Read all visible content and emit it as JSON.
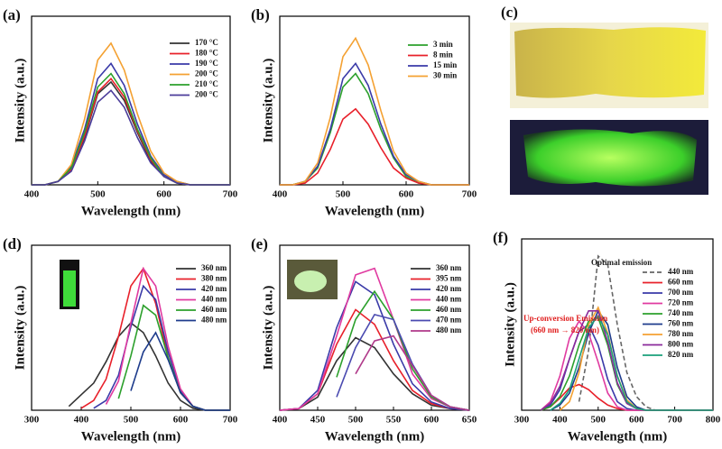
{
  "photo_panel": {
    "label": "(c)"
  },
  "chart_data": [
    {
      "type": "line",
      "label": "(a)",
      "xlabel": "Wavelength (nm)",
      "ylabel": "Intensity (a.u.)",
      "x": [
        400,
        420,
        440,
        460,
        480,
        500,
        520,
        540,
        560,
        580,
        600,
        620,
        640,
        660,
        680,
        700
      ],
      "xlim": [
        400,
        700
      ],
      "xticks": [
        400,
        500,
        600,
        700
      ],
      "ylim": [
        0,
        1
      ],
      "legend": "upper right",
      "series": [
        {
          "name": "170 °C",
          "color": "#333333",
          "values": [
            0,
            0,
            0.02,
            0.09,
            0.28,
            0.54,
            0.61,
            0.5,
            0.31,
            0.14,
            0.05,
            0.01,
            0,
            0,
            0,
            0
          ]
        },
        {
          "name": "180 °C",
          "color": "#e8202a",
          "values": [
            0,
            0,
            0.02,
            0.09,
            0.29,
            0.55,
            0.63,
            0.52,
            0.32,
            0.15,
            0.05,
            0.01,
            0,
            0,
            0,
            0
          ]
        },
        {
          "name": "190 °C",
          "color": "#3a3aa8",
          "values": [
            0,
            0,
            0.02,
            0.11,
            0.33,
            0.63,
            0.72,
            0.59,
            0.36,
            0.17,
            0.06,
            0.02,
            0,
            0,
            0,
            0
          ]
        },
        {
          "name": "200 °C",
          "color": "#f4a132",
          "values": [
            0,
            0,
            0.02,
            0.12,
            0.39,
            0.74,
            0.84,
            0.68,
            0.42,
            0.2,
            0.07,
            0.02,
            0,
            0,
            0,
            0
          ]
        },
        {
          "name": "210 °C",
          "color": "#2ca02c",
          "values": [
            0,
            0,
            0.02,
            0.1,
            0.31,
            0.58,
            0.66,
            0.54,
            0.33,
            0.16,
            0.05,
            0.01,
            0,
            0,
            0,
            0
          ]
        },
        {
          "name": "200 °C",
          "color": "#4b3c9a",
          "values": [
            0,
            0,
            0.02,
            0.08,
            0.26,
            0.49,
            0.56,
            0.46,
            0.28,
            0.13,
            0.05,
            0.01,
            0,
            0,
            0,
            0
          ]
        }
      ]
    },
    {
      "type": "line",
      "label": "(b)",
      "xlabel": "Wavelength (nm)",
      "ylabel": "Intensity (a.u.)",
      "x": [
        400,
        420,
        440,
        460,
        480,
        500,
        520,
        540,
        560,
        580,
        600,
        620,
        640,
        660,
        680,
        700
      ],
      "xlim": [
        400,
        700
      ],
      "xticks": [
        400,
        500,
        600,
        700
      ],
      "ylim": [
        0,
        1
      ],
      "legend": "upper right",
      "series": [
        {
          "name": "3 min",
          "color": "#2ca02c",
          "values": [
            0,
            0,
            0.02,
            0.1,
            0.31,
            0.58,
            0.66,
            0.54,
            0.33,
            0.16,
            0.05,
            0.01,
            0,
            0,
            0,
            0
          ]
        },
        {
          "name": "8 min",
          "color": "#e8202a",
          "values": [
            0,
            0,
            0.01,
            0.07,
            0.21,
            0.39,
            0.45,
            0.36,
            0.22,
            0.1,
            0.04,
            0.01,
            0,
            0,
            0,
            0
          ]
        },
        {
          "name": "15 min",
          "color": "#3a3aa8",
          "values": [
            0,
            0,
            0.02,
            0.11,
            0.33,
            0.63,
            0.72,
            0.59,
            0.36,
            0.17,
            0.06,
            0.02,
            0,
            0,
            0,
            0
          ]
        },
        {
          "name": "30 min",
          "color": "#f4a132",
          "values": [
            0,
            0,
            0.02,
            0.13,
            0.4,
            0.76,
            0.87,
            0.71,
            0.44,
            0.2,
            0.07,
            0.02,
            0,
            0,
            0,
            0
          ]
        }
      ]
    },
    {
      "type": "line",
      "label": "(d)",
      "xlabel": "Wavelength (nm)",
      "ylabel": "Intensity (a.u.)",
      "x": [
        300,
        325,
        350,
        375,
        400,
        425,
        450,
        475,
        500,
        525,
        550,
        575,
        600,
        625,
        650,
        675,
        700
      ],
      "xlim": [
        300,
        700
      ],
      "xticks": [
        300,
        400,
        500,
        600,
        700
      ],
      "ylim": [
        0,
        0.85
      ],
      "legend": "upper right",
      "series": [
        {
          "name": "360 nm",
          "color": "#333333",
          "values": [
            null,
            null,
            null,
            0.02,
            0.08,
            0.14,
            0.25,
            0.38,
            0.45,
            0.4,
            0.28,
            0.14,
            0.05,
            0.01,
            0,
            0,
            0
          ]
        },
        {
          "name": "380 nm",
          "color": "#e8202a",
          "values": [
            null,
            null,
            null,
            null,
            0.01,
            0.05,
            0.16,
            0.38,
            0.64,
            0.73,
            0.55,
            0.27,
            0.09,
            0.02,
            0,
            0,
            0
          ]
        },
        {
          "name": "420 nm",
          "color": "#3a3aa8",
          "values": [
            null,
            null,
            null,
            null,
            null,
            0.01,
            0.05,
            0.18,
            0.43,
            0.64,
            0.57,
            0.3,
            0.1,
            0.02,
            0,
            0,
            0
          ]
        },
        {
          "name": "440 nm",
          "color": "#e03aa0",
          "values": [
            null,
            null,
            null,
            null,
            null,
            null,
            0.03,
            0.15,
            0.45,
            0.73,
            0.64,
            0.33,
            0.11,
            0.02,
            0,
            0,
            0
          ]
        },
        {
          "name": "460 nm",
          "color": "#2ca02c",
          "values": [
            null,
            null,
            null,
            null,
            null,
            null,
            null,
            0.06,
            0.28,
            0.54,
            0.49,
            0.27,
            0.09,
            0.02,
            0,
            0,
            0
          ]
        },
        {
          "name": "480 nm",
          "color": "#1e3c8c",
          "values": [
            null,
            null,
            null,
            null,
            null,
            null,
            null,
            null,
            0.1,
            0.3,
            0.4,
            0.26,
            0.09,
            0.02,
            0,
            0,
            0
          ]
        }
      ]
    },
    {
      "type": "line",
      "label": "(e)",
      "xlabel": "Wavelength (nm)",
      "ylabel": "Intensity (a.u.)",
      "x": [
        400,
        425,
        450,
        475,
        500,
        525,
        550,
        575,
        600,
        625,
        650
      ],
      "xlim": [
        400,
        650
      ],
      "xticks": [
        400,
        450,
        500,
        550,
        600,
        650
      ],
      "ylim": [
        0,
        1
      ],
      "legend": "upper right",
      "series": [
        {
          "name": "360 nm",
          "color": "#333333",
          "values": [
            0,
            0.01,
            0.08,
            0.3,
            0.44,
            0.38,
            0.22,
            0.1,
            0.03,
            0.01,
            0
          ]
        },
        {
          "name": "395 nm",
          "color": "#e8202a",
          "values": [
            0,
            0.01,
            0.1,
            0.4,
            0.61,
            0.52,
            0.3,
            0.12,
            0.04,
            0.01,
            0
          ]
        },
        {
          "name": "420 nm",
          "color": "#3a3aa8",
          "values": [
            0,
            0.01,
            0.12,
            0.5,
            0.78,
            0.7,
            0.4,
            0.16,
            0.05,
            0.01,
            0
          ]
        },
        {
          "name": "440 nm",
          "color": "#e03aa0",
          "values": [
            0,
            0.01,
            0.1,
            0.45,
            0.82,
            0.86,
            0.55,
            0.22,
            0.07,
            0.02,
            0
          ]
        },
        {
          "name": "460 nm",
          "color": "#2ca02c",
          "values": [
            null,
            null,
            null,
            0.2,
            0.55,
            0.72,
            0.55,
            0.25,
            0.08,
            0.02,
            0
          ]
        },
        {
          "name": "470 nm",
          "color": "#4a4ab0",
          "values": [
            null,
            null,
            null,
            0.08,
            0.38,
            0.58,
            0.55,
            0.28,
            0.09,
            0.02,
            0
          ]
        },
        {
          "name": "480 nm",
          "color": "#b03a8a",
          "values": [
            null,
            null,
            null,
            null,
            0.22,
            0.42,
            0.45,
            0.27,
            0.09,
            0.02,
            0
          ]
        }
      ]
    },
    {
      "type": "line",
      "label": "(f)",
      "xlabel": "Wavelength (nm)",
      "ylabel": "Intensity (a.u.)",
      "x": [
        300,
        325,
        350,
        375,
        400,
        425,
        450,
        475,
        500,
        525,
        550,
        575,
        600,
        625,
        650,
        675,
        700,
        725,
        750,
        775,
        800
      ],
      "xlim": [
        300,
        800
      ],
      "xticks": [
        300,
        400,
        500,
        600,
        700,
        800
      ],
      "ylim": [
        0,
        1
      ],
      "legend": "upper right",
      "annotations": [
        "Optimal emission",
        "Up-conversion Emission",
        "(660 nm → 820 nm)"
      ],
      "series": [
        {
          "name": "440 nm",
          "color": "#666666",
          "linestyle": "dashed",
          "values": [
            null,
            null,
            null,
            null,
            null,
            null,
            0.05,
            0.35,
            0.9,
            0.85,
            0.5,
            0.22,
            0.08,
            0.02,
            0,
            0,
            0,
            0,
            0,
            0,
            0
          ]
        },
        {
          "name": "660 nm",
          "color": "#e8202a",
          "values": [
            null,
            null,
            0,
            0.02,
            0.07,
            0.13,
            0.15,
            0.12,
            0.07,
            0.03,
            0.01,
            0,
            0,
            0,
            0,
            0,
            0,
            0,
            0,
            0,
            0
          ]
        },
        {
          "name": "700 nm",
          "color": "#3a3aa8",
          "values": [
            null,
            null,
            0,
            0.03,
            0.12,
            0.3,
            0.46,
            0.5,
            0.38,
            0.18,
            0.05,
            0.01,
            0,
            0,
            0,
            0,
            0,
            0,
            0,
            0,
            0
          ]
        },
        {
          "name": "720 nm",
          "color": "#e03aa0",
          "values": [
            null,
            null,
            0,
            0.05,
            0.2,
            0.42,
            0.52,
            0.45,
            0.28,
            0.1,
            0.02,
            0,
            0,
            0,
            0,
            0,
            0,
            0,
            0,
            0,
            0
          ]
        },
        {
          "name": "740 nm",
          "color": "#2ca02c",
          "values": [
            null,
            null,
            0,
            0.02,
            0.08,
            0.2,
            0.38,
            0.52,
            0.54,
            0.38,
            0.15,
            0.04,
            0.01,
            0,
            0,
            0,
            0,
            0,
            0,
            0,
            0
          ]
        },
        {
          "name": "760 nm",
          "color": "#1e3c8c",
          "values": [
            null,
            null,
            null,
            0,
            0.03,
            0.1,
            0.25,
            0.45,
            0.58,
            0.5,
            0.25,
            0.08,
            0.02,
            0,
            0,
            0,
            0,
            0,
            0,
            0,
            0
          ]
        },
        {
          "name": "780 nm",
          "color": "#f4a132",
          "values": [
            null,
            null,
            null,
            null,
            0,
            0.05,
            0.22,
            0.5,
            0.6,
            0.45,
            0.2,
            0.06,
            0.01,
            0,
            0,
            0,
            0,
            0,
            0,
            0,
            0
          ]
        },
        {
          "name": "800 nm",
          "color": "#8a2a9a",
          "values": [
            null,
            null,
            0,
            0.04,
            0.14,
            0.3,
            0.46,
            0.58,
            0.58,
            0.4,
            0.16,
            0.04,
            0.01,
            0,
            0,
            0,
            0,
            0,
            0,
            0,
            0
          ]
        },
        {
          "name": "820 nm",
          "color": "#1aa07a",
          "values": [
            null,
            null,
            null,
            0,
            0.04,
            0.12,
            0.3,
            0.48,
            0.55,
            0.44,
            0.2,
            0.05,
            0.01,
            0,
            0,
            0,
            0,
            0,
            0,
            0,
            0
          ]
        }
      ]
    }
  ]
}
